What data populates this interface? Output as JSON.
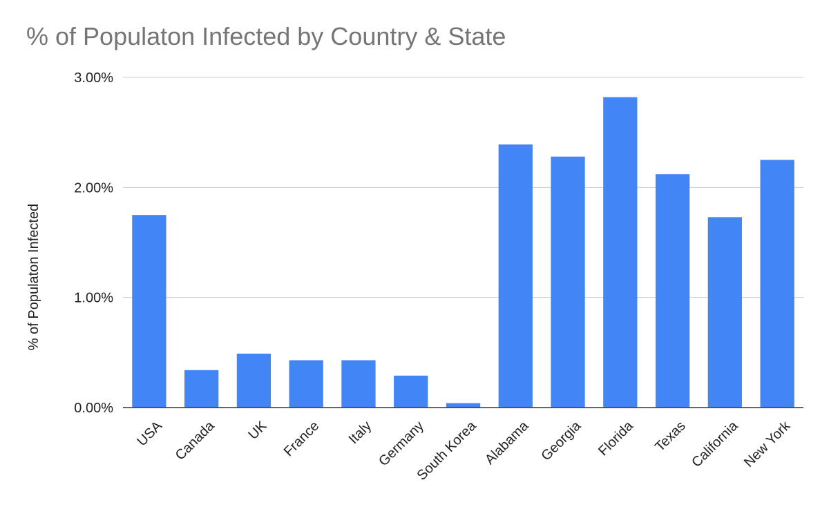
{
  "chart_data": {
    "type": "bar",
    "title": "% of Populaton Infected by Country & State",
    "xlabel": "",
    "ylabel": "% of Populaton Infected",
    "categories": [
      "USA",
      "Canada",
      "UK",
      "France",
      "Italy",
      "Germany",
      "South Korea",
      "Alabama",
      "Georgia",
      "Florida",
      "Texas",
      "California",
      "New York"
    ],
    "values": [
      1.75,
      0.34,
      0.49,
      0.43,
      0.43,
      0.29,
      0.04,
      2.39,
      2.28,
      2.82,
      2.12,
      1.73,
      2.25
    ],
    "value_unit": "%",
    "ylim": [
      0,
      3
    ],
    "yticks": [
      "0.00%",
      "1.00%",
      "2.00%",
      "3.00%"
    ],
    "grid": true,
    "legend": "none",
    "bar_color": "#4285f4"
  }
}
